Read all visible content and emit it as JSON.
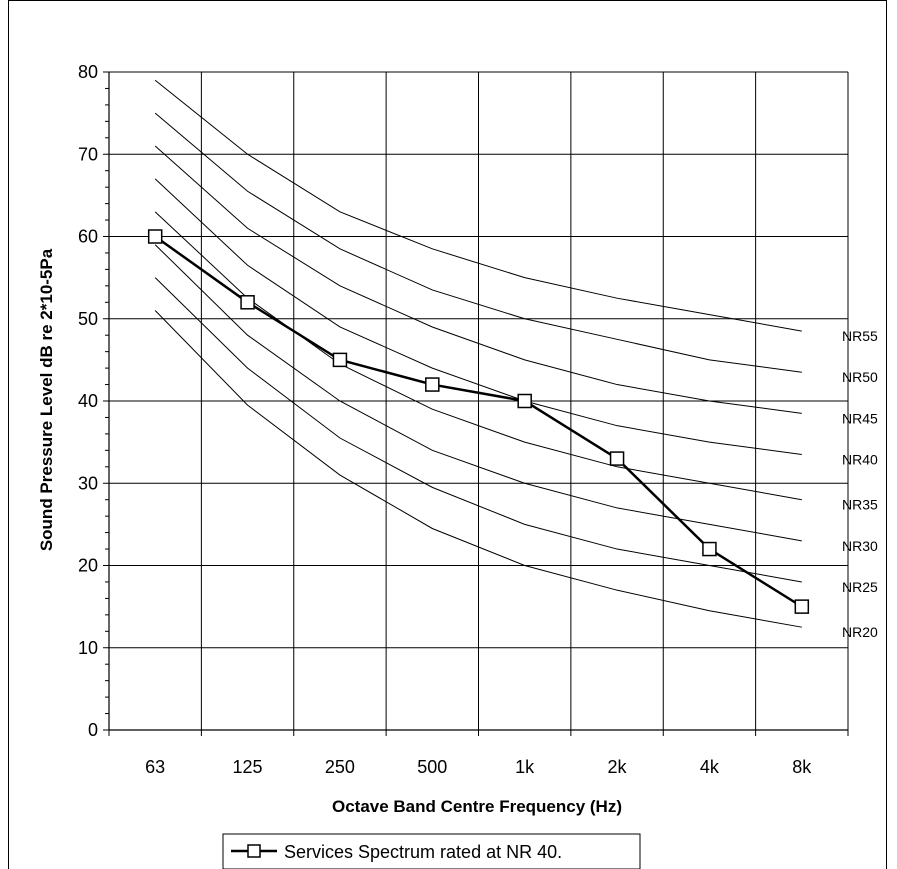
{
  "chart_data": {
    "type": "line",
    "xlabel": "Octave Band Centre Frequency (Hz)",
    "ylabel": "Sound Pressure Level dB re 2*10-5Pa",
    "categories": [
      "63",
      "125",
      "250",
      "500",
      "1k",
      "2k",
      "4k",
      "8k"
    ],
    "ylim": [
      0,
      80
    ],
    "yticks": [
      "0",
      "10",
      "20",
      "30",
      "40",
      "50",
      "60",
      "70",
      "80"
    ],
    "grid": true,
    "nr_curves": [
      {
        "name": "NR55",
        "values": [
          79,
          70,
          63,
          58.5,
          55,
          52.5,
          50.5,
          48.5
        ]
      },
      {
        "name": "NR50",
        "values": [
          75,
          65.5,
          58.5,
          53.5,
          50,
          47.5,
          45,
          43.5
        ]
      },
      {
        "name": "NR45",
        "values": [
          71,
          61,
          54,
          49,
          45,
          42,
          40,
          38.5
        ]
      },
      {
        "name": "NR40",
        "values": [
          67,
          56.5,
          49,
          44,
          40,
          37,
          35,
          33.5
        ]
      },
      {
        "name": "NR35",
        "values": [
          63,
          52.5,
          44.5,
          39,
          35,
          32,
          30,
          28
        ]
      },
      {
        "name": "NR30",
        "values": [
          59,
          48,
          40,
          34,
          30,
          27,
          25,
          23
        ]
      },
      {
        "name": "NR25",
        "values": [
          55,
          44,
          35.5,
          29.5,
          25,
          22,
          20,
          18
        ]
      },
      {
        "name": "NR20",
        "values": [
          51,
          39.5,
          31,
          24.5,
          20,
          17,
          14.5,
          12.5
        ]
      }
    ],
    "series": [
      {
        "name": "Services Spectrum rated at NR 40.",
        "values": [
          60,
          52,
          45,
          42,
          40,
          33,
          22,
          15
        ]
      }
    ],
    "legend": {
      "position": "bottom-center",
      "label": "Services Spectrum rated at NR 40."
    }
  }
}
